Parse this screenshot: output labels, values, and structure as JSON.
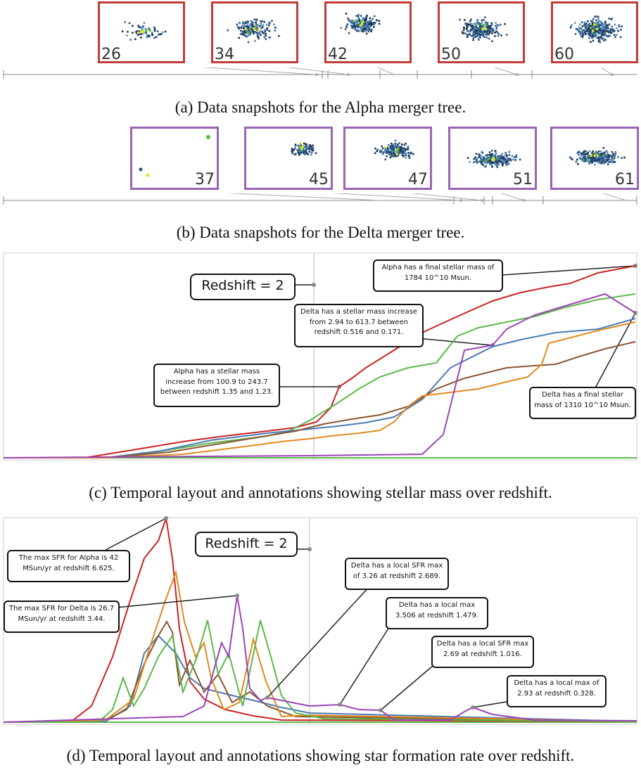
{
  "panel_a": {
    "snapshots": [
      "26",
      "34",
      "42",
      "50",
      "60"
    ],
    "caption": "(a) Data snapshots for the Alpha merger tree.",
    "border_color": "#c23a3a"
  },
  "panel_b": {
    "snapshots": [
      "37",
      "45",
      "47",
      "51",
      "61"
    ],
    "caption": "(b) Data snapshots for the Delta merger tree.",
    "border_color": "#9b63b5"
  },
  "panel_c": {
    "caption": "(c) Temporal layout and annotations showing stellar mass over redshift.",
    "redshift_label": "Redshift = 2",
    "annotations": [
      "Alpha has a final stellar mass of 1784 10^10 Msun.",
      "Delta has a stellar mass increase from 2.94 to 613.7 between redshift 0.516 and 0.171.",
      "Alpha has a stellar mass increase from 100.9 to 243.7 between redshift 1.35 and 1.23.",
      "Delta has a final stellar mass of 1310 10^10 Msun."
    ]
  },
  "panel_d": {
    "caption": "(d) Temporal layout and annotations showing star formation rate over redshift.",
    "redshift_label": "Redshift = 2",
    "annotations": [
      "The max SFR for Alpha is 42 MSun/yr at redshift 6.625.",
      "The max SFR for Delta is 26.7 MSun/yr at redshift 3.44.",
      "Delta has a local SFR max of 3.26 at redshift 2.689.",
      "Delta has a local max 3.506 at redshift 1.479.",
      "Delta has a local SFR max 2.69 at redshift 1.016.",
      "Delta has a local max of 2.93 at redshift 0.328."
    ]
  },
  "colors": {
    "alpha": "#cc2222",
    "delta": "#9b44b8",
    "green": "#5cb84a",
    "blue": "#4a7ab8",
    "orange": "#e08a1e",
    "brown": "#8a5530"
  }
}
